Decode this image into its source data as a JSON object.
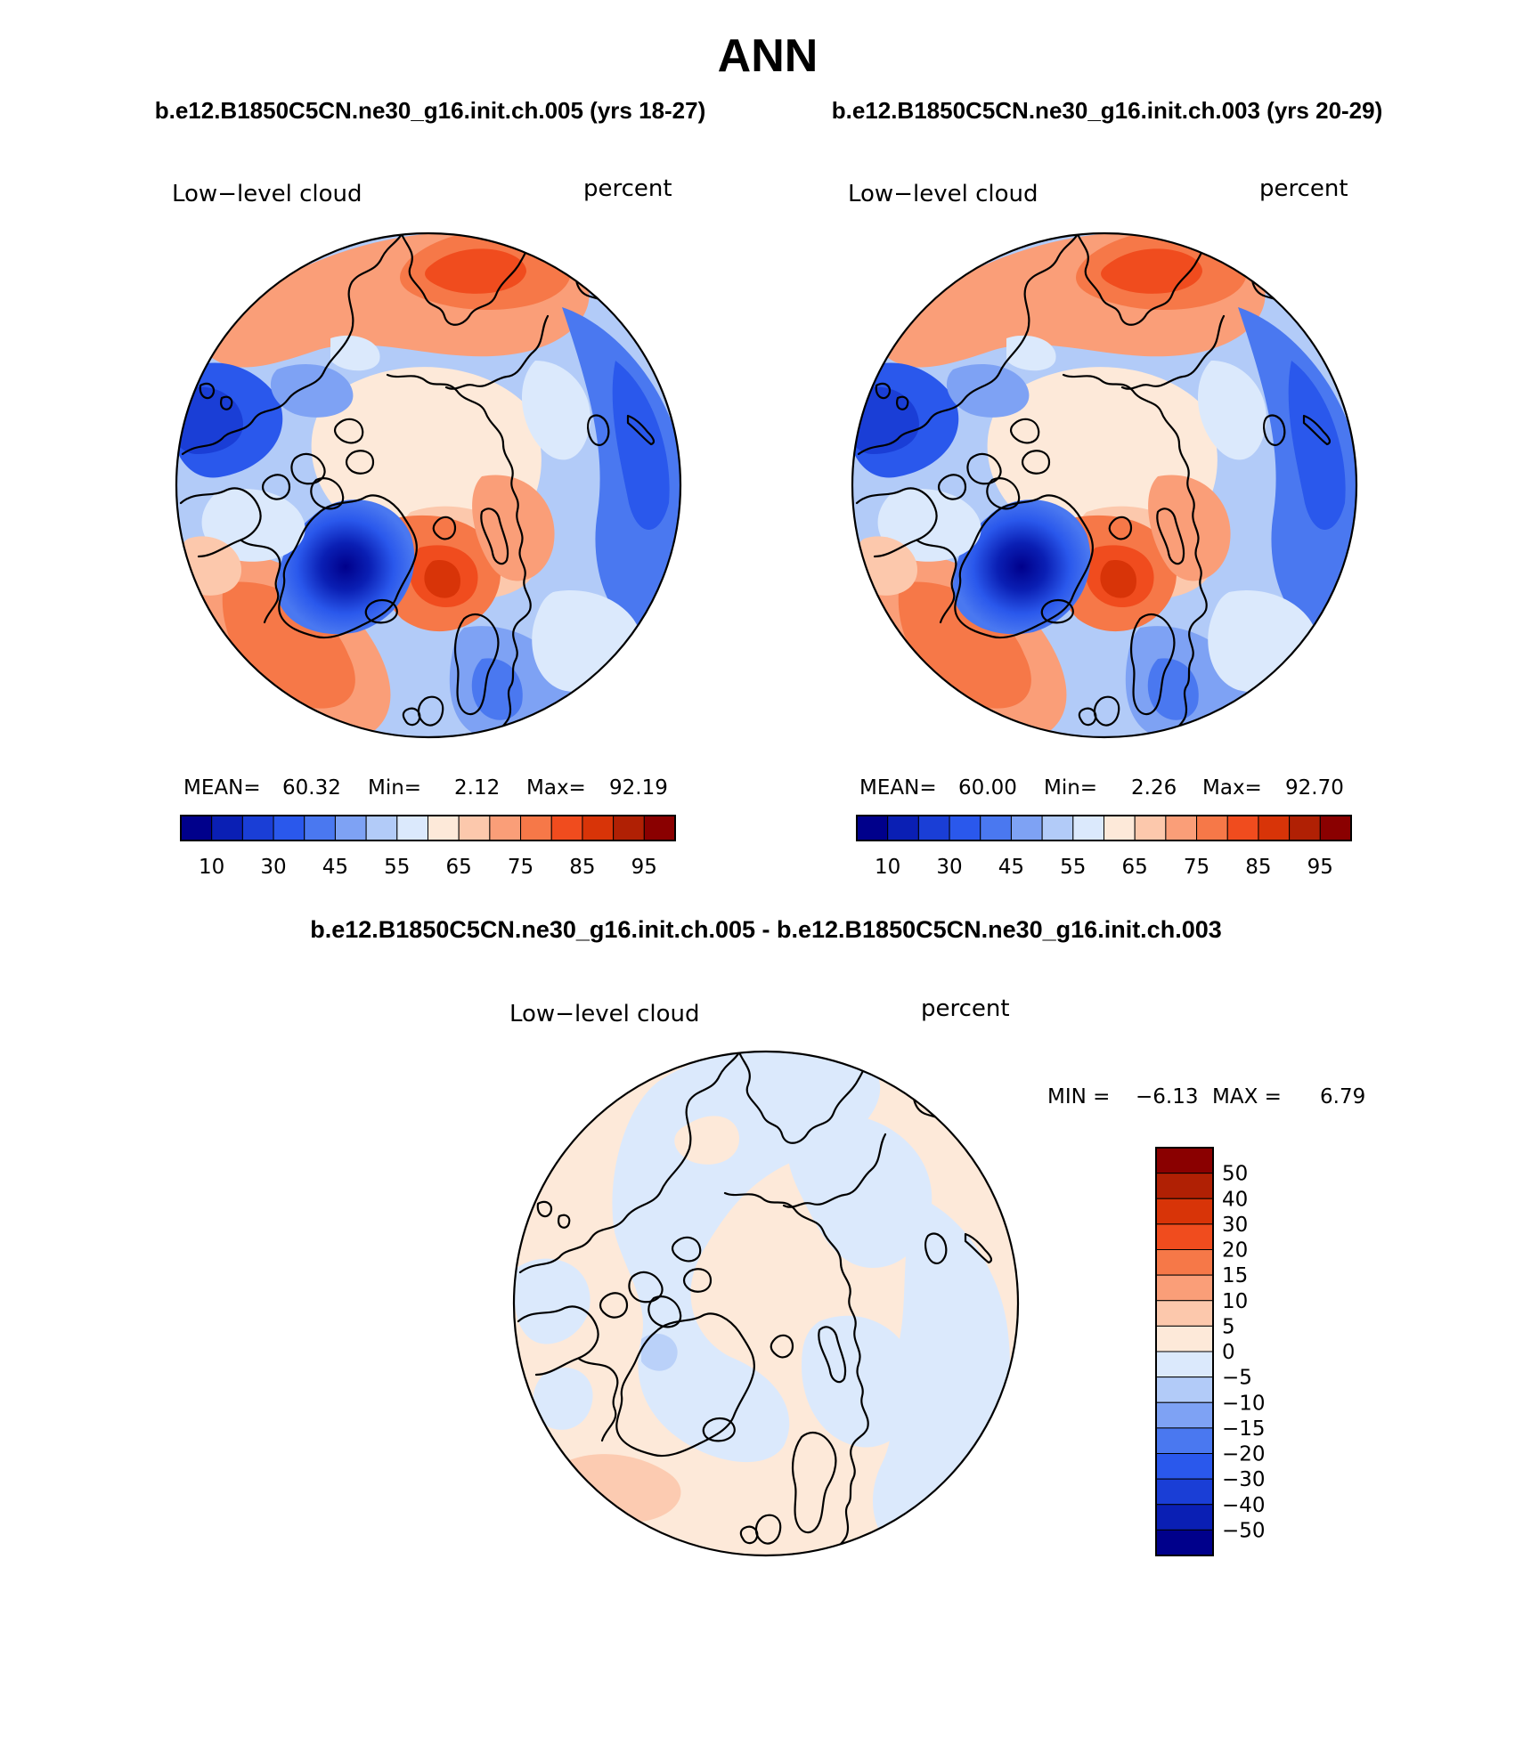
{
  "figure": {
    "title": "ANN",
    "case_a": "b.e12.B1850C5CN.ne30_g16.init.ch.005 (yrs 18-27)",
    "case_b": "b.e12.B1850C5CN.ne30_g16.init.ch.003 (yrs 20-29)",
    "diff_title": "b.e12.B1850C5CN.ne30_g16.init.ch.005 - b.e12.B1850C5CN.ne30_g16.init.ch.003"
  },
  "panels": [
    {
      "variable": "Low−level cloud",
      "units": "percent",
      "stats": {
        "mean_label": "MEAN=",
        "mean": "60.32",
        "min_label": "Min=",
        "min": "2.12",
        "max_label": "Max=",
        "max": "92.19"
      }
    },
    {
      "variable": "Low−level cloud",
      "units": "percent",
      "stats": {
        "mean_label": "MEAN=",
        "mean": "60.00",
        "min_label": "Min=",
        "min": "2.26",
        "max_label": "Max=",
        "max": "92.70"
      }
    }
  ],
  "diff_panel": {
    "variable": "Low−level cloud",
    "units": "percent",
    "min_label": "MIN =",
    "min": "−6.13",
    "max_label": "MAX =",
    "max": "6.79"
  },
  "colorbar_abs": {
    "colors": [
      "#00008b",
      "#0a1fb4",
      "#1a3ed6",
      "#2a58ec",
      "#4a78f0",
      "#7ea2f4",
      "#b2cbf8",
      "#dbe9fc",
      "#fde9d9",
      "#fcc8ac",
      "#fa9e78",
      "#f67848",
      "#f04c1e",
      "#d83408",
      "#b02004",
      "#8a0000"
    ],
    "tick_labels": [
      "10",
      "30",
      "45",
      "55",
      "65",
      "75",
      "85",
      "95"
    ]
  },
  "colorbar_diff": {
    "colors_top_to_bottom": [
      "#8a0000",
      "#b02004",
      "#d83408",
      "#f04c1e",
      "#f67848",
      "#fa9e78",
      "#fcc8ac",
      "#fde9d9",
      "#dbe9fc",
      "#b2cbf8",
      "#7ea2f4",
      "#4a78f0",
      "#2a58ec",
      "#1a3ed6",
      "#0a1fb4",
      "#00008b"
    ],
    "tick_labels": [
      "50",
      "40",
      "30",
      "20",
      "15",
      "10",
      "5",
      "0",
      "−5",
      "−10",
      "−15",
      "−20",
      "−30",
      "−40",
      "−50"
    ]
  }
}
